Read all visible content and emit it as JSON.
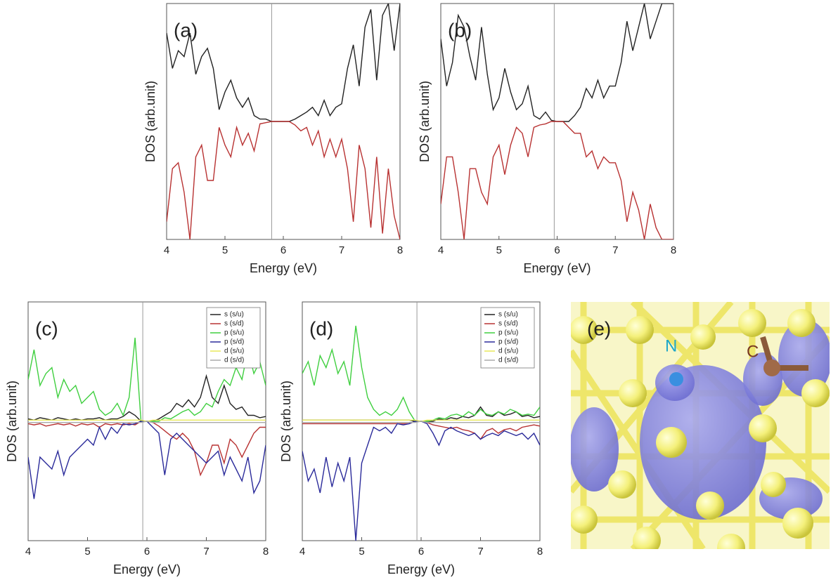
{
  "chart_data": [
    {
      "type": "line",
      "label": "(a)",
      "xlabel": "Energy (eV)",
      "ylabel": "DOS (arb.unit)",
      "xlim": [
        4,
        8
      ],
      "xticks": [
        4,
        5,
        6,
        7,
        8
      ],
      "ylim": [
        -1,
        1
      ],
      "fermi_level": 5.8,
      "x": [
        4,
        4.1,
        4.2,
        4.3,
        4.4,
        4.5,
        4.6,
        4.7,
        4.8,
        4.9,
        5,
        5.1,
        5.2,
        5.3,
        5.4,
        5.5,
        5.6,
        5.7,
        5.8,
        5.9,
        6,
        6.1,
        6.2,
        6.3,
        6.4,
        6.5,
        6.6,
        6.7,
        6.8,
        6.9,
        7,
        7.1,
        7.2,
        7.3,
        7.4,
        7.5,
        7.6,
        7.7,
        7.8,
        7.9,
        8
      ],
      "series": [
        {
          "color": "#222222",
          "values": [
            0.75,
            0.45,
            0.6,
            0.55,
            0.75,
            0.4,
            0.55,
            0.62,
            0.45,
            0.1,
            0.25,
            0.35,
            0.2,
            0.12,
            0.2,
            0.05,
            0.02,
            0.02,
            0,
            0,
            0,
            0,
            0.02,
            0.05,
            0.08,
            0.12,
            0.05,
            0.18,
            0.05,
            0.12,
            0.15,
            0.45,
            0.65,
            0.3,
            0.8,
            0.95,
            0.35,
            0.9,
            1,
            0.6,
            1
          ]
        },
        {
          "color": "#b83232",
          "values": [
            -0.85,
            -0.4,
            -0.35,
            -0.6,
            -1,
            -0.3,
            -0.2,
            -0.5,
            -0.5,
            -0.05,
            -0.2,
            -0.3,
            -0.05,
            -0.2,
            -0.1,
            -0.25,
            -0.02,
            -0.01,
            0,
            0,
            0,
            0,
            -0.03,
            -0.08,
            -0.05,
            -0.2,
            -0.08,
            -0.3,
            -0.15,
            -0.3,
            -0.15,
            -0.4,
            -0.85,
            -0.2,
            -0.4,
            -0.9,
            -0.3,
            -0.95,
            -0.4,
            -0.8,
            -1
          ]
        }
      ]
    },
    {
      "type": "line",
      "label": "(b)",
      "xlabel": "Energy (eV)",
      "ylabel": "DOS (arb.unit)",
      "xlim": [
        4,
        8
      ],
      "xticks": [
        4,
        5,
        6,
        7,
        8
      ],
      "ylim": [
        -1,
        1
      ],
      "fermi_level": 5.95,
      "x": [
        4,
        4.1,
        4.2,
        4.3,
        4.4,
        4.5,
        4.6,
        4.7,
        4.8,
        4.9,
        5,
        5.1,
        5.2,
        5.3,
        5.4,
        5.5,
        5.6,
        5.7,
        5.8,
        5.9,
        6,
        6.1,
        6.2,
        6.3,
        6.4,
        6.5,
        6.6,
        6.7,
        6.8,
        6.9,
        7,
        7.1,
        7.2,
        7.3,
        7.4,
        7.5,
        7.6,
        7.7,
        7.8,
        7.9,
        8
      ],
      "series": [
        {
          "color": "#222222",
          "values": [
            0.7,
            0.3,
            0.5,
            0.9,
            0.8,
            0.55,
            0.35,
            0.8,
            0.4,
            0.1,
            0.2,
            0.45,
            0.25,
            0.1,
            0.15,
            0.3,
            0.05,
            0.02,
            0.08,
            0.01,
            0,
            0,
            0,
            0.05,
            0.12,
            0.28,
            0.2,
            0.35,
            0.2,
            0.3,
            0.3,
            0.5,
            0.85,
            0.6,
            0.8,
            1,
            0.7,
            0.85,
            1,
            1,
            1
          ]
        },
        {
          "color": "#b83232",
          "values": [
            -0.7,
            -0.3,
            -0.3,
            -0.6,
            -1,
            -0.4,
            -0.4,
            -0.6,
            -0.7,
            -0.3,
            -0.2,
            -0.45,
            -0.2,
            -0.05,
            -0.1,
            -0.3,
            -0.05,
            -0.03,
            -0.02,
            0,
            0,
            0,
            -0.05,
            -0.1,
            -0.1,
            -0.3,
            -0.25,
            -0.4,
            -0.3,
            -0.35,
            -0.35,
            -0.5,
            -0.85,
            -0.6,
            -0.75,
            -1,
            -0.7,
            -0.9,
            -1,
            -1,
            -1
          ]
        }
      ]
    },
    {
      "type": "line",
      "label": "(c)",
      "xlabel": "Energy (eV)",
      "ylabel": "DOS (arb.unit)",
      "legend": "upper right",
      "xlim": [
        4,
        8
      ],
      "xticks": [
        4,
        5,
        6,
        7,
        8
      ],
      "ylim": [
        -1,
        1
      ],
      "fermi_level": 5.93,
      "x": [
        4,
        4.1,
        4.2,
        4.3,
        4.4,
        4.5,
        4.6,
        4.7,
        4.8,
        4.9,
        5,
        5.1,
        5.2,
        5.3,
        5.4,
        5.5,
        5.6,
        5.7,
        5.8,
        5.9,
        6,
        6.1,
        6.2,
        6.3,
        6.4,
        6.5,
        6.6,
        6.7,
        6.8,
        6.9,
        7,
        7.1,
        7.2,
        7.3,
        7.4,
        7.5,
        7.6,
        7.7,
        7.8,
        7.9,
        8
      ],
      "series": [
        {
          "name": "s (s/u)",
          "color": "#222222",
          "values": [
            0.02,
            0.01,
            0.03,
            0.02,
            0.01,
            0.03,
            0.02,
            0.01,
            0.02,
            0.01,
            0.02,
            0.02,
            0.03,
            0.01,
            0.02,
            0.02,
            0.04,
            0.08,
            0.05,
            0,
            0,
            0,
            0.02,
            0.05,
            0.08,
            0.15,
            0.12,
            0.18,
            0.12,
            0.2,
            0.38,
            0.2,
            0.15,
            0.3,
            0.15,
            0.1,
            0.12,
            0.05,
            0.05,
            0.03,
            0.04
          ]
        },
        {
          "name": "s (s/d)",
          "color": "#b83232",
          "values": [
            -0.02,
            -0.03,
            -0.02,
            -0.04,
            -0.03,
            -0.02,
            -0.03,
            -0.02,
            -0.04,
            -0.02,
            -0.03,
            -0.02,
            -0.05,
            -0.02,
            -0.03,
            -0.02,
            -0.03,
            -0.02,
            -0.03,
            0,
            0,
            -0.01,
            -0.04,
            -0.08,
            -0.12,
            -0.15,
            -0.1,
            -0.15,
            -0.25,
            -0.45,
            -0.35,
            -0.2,
            -0.2,
            -0.35,
            -0.15,
            -0.2,
            -0.3,
            -0.2,
            -0.1,
            -0.05,
            -0.05
          ]
        },
        {
          "name": "p (s/u)",
          "color": "#3fcf3f",
          "values": [
            0.35,
            0.6,
            0.3,
            0.4,
            0.45,
            0.2,
            0.35,
            0.25,
            0.3,
            0.15,
            0.2,
            0.25,
            0.1,
            0.05,
            0.08,
            0.15,
            0.05,
            0.2,
            0.7,
            0,
            0,
            0,
            0,
            0.03,
            0.02,
            0.05,
            0.08,
            0.1,
            0.05,
            0.08,
            0.15,
            0.12,
            0.25,
            0.35,
            0.3,
            0.45,
            0.35,
            0.6,
            0.4,
            0.5,
            0.3
          ]
        },
        {
          "name": "p (s/d)",
          "color": "#2a2a9a",
          "values": [
            -0.3,
            -0.65,
            -0.3,
            -0.35,
            -0.4,
            -0.25,
            -0.45,
            -0.3,
            -0.25,
            -0.2,
            -0.15,
            -0.2,
            -0.05,
            -0.15,
            -0.05,
            -0.1,
            -0.02,
            -0.03,
            -0.02,
            0,
            0,
            -0.05,
            -0.1,
            -0.45,
            -0.15,
            -0.1,
            -0.15,
            -0.2,
            -0.25,
            -0.3,
            -0.35,
            -0.3,
            -0.25,
            -0.45,
            -0.3,
            -0.4,
            -0.5,
            -0.3,
            -0.6,
            -0.5,
            -0.2
          ]
        },
        {
          "name": "d (s/u)",
          "color": "#e8e85a",
          "values": [
            0.01,
            0.01,
            0.01,
            0.01,
            0.01,
            0.01,
            0.01,
            0.01,
            0.01,
            0.01,
            0.01,
            0.01,
            0.01,
            0.01,
            0.01,
            0.01,
            0.01,
            0.01,
            0.01,
            0.01,
            0,
            0.01,
            0.01,
            0.01,
            0.01,
            0.01,
            0.01,
            0.01,
            0.01,
            0.01,
            0.01,
            0.01,
            0.01,
            0.01,
            0.01,
            0.01,
            0.01,
            0.01,
            0.01,
            0.01,
            0.01
          ]
        },
        {
          "name": "d (s/d)",
          "color": "#aaaaaa",
          "values": [
            -0.01,
            -0.01,
            -0.01,
            -0.01,
            -0.01,
            -0.01,
            -0.01,
            -0.01,
            -0.01,
            -0.01,
            -0.01,
            -0.01,
            -0.01,
            -0.01,
            -0.01,
            -0.01,
            -0.01,
            -0.01,
            -0.01,
            -0.01,
            0,
            -0.01,
            -0.01,
            -0.01,
            -0.01,
            -0.01,
            -0.01,
            -0.01,
            -0.01,
            -0.01,
            -0.01,
            -0.01,
            -0.01,
            -0.01,
            -0.01,
            -0.01,
            -0.01,
            -0.01,
            -0.01,
            -0.01,
            -0.01
          ]
        }
      ]
    },
    {
      "type": "line",
      "label": "(d)",
      "xlabel": "Energy (eV)",
      "ylabel": "DOS (arb.unit)",
      "legend": "upper right",
      "xlim": [
        4,
        8
      ],
      "xticks": [
        4,
        5,
        6,
        7,
        8
      ],
      "ylim": [
        -1,
        1
      ],
      "fermi_level": 5.93,
      "x": [
        4,
        4.1,
        4.2,
        4.3,
        4.4,
        4.5,
        4.6,
        4.7,
        4.8,
        4.9,
        5,
        5.1,
        5.2,
        5.3,
        5.4,
        5.5,
        5.6,
        5.7,
        5.8,
        5.9,
        6,
        6.1,
        6.2,
        6.3,
        6.4,
        6.5,
        6.6,
        6.7,
        6.8,
        6.9,
        7,
        7.1,
        7.2,
        7.3,
        7.4,
        7.5,
        7.6,
        7.7,
        7.8,
        7.9,
        8
      ],
      "series": [
        {
          "name": "s (s/u)",
          "color": "#222222",
          "values": [
            0.01,
            0.01,
            0.01,
            0.01,
            0.01,
            0.01,
            0.01,
            0.01,
            0.01,
            0.01,
            0.01,
            0.01,
            0.01,
            0.01,
            0.01,
            0.01,
            0.01,
            0.01,
            0.01,
            0,
            0,
            0,
            0,
            0.02,
            0.01,
            0.03,
            0.02,
            0.04,
            0.03,
            0.05,
            0.12,
            0.05,
            0.04,
            0.08,
            0.05,
            0.06,
            0.08,
            0.04,
            0.05,
            0.03,
            0.04
          ]
        },
        {
          "name": "s (s/d)",
          "color": "#b83232",
          "values": [
            -0.02,
            -0.02,
            -0.02,
            -0.02,
            -0.02,
            -0.02,
            -0.02,
            -0.02,
            -0.02,
            -0.02,
            -0.02,
            -0.02,
            -0.02,
            -0.02,
            -0.02,
            -0.02,
            -0.02,
            -0.02,
            -0.02,
            0,
            0,
            -0.01,
            -0.03,
            -0.04,
            -0.05,
            -0.06,
            -0.05,
            -0.07,
            -0.08,
            -0.1,
            -0.15,
            -0.08,
            -0.06,
            -0.1,
            -0.07,
            -0.06,
            -0.08,
            -0.05,
            -0.04,
            -0.03,
            -0.04
          ]
        },
        {
          "name": "p (s/u)",
          "color": "#3fcf3f",
          "values": [
            0.4,
            0.5,
            0.3,
            0.55,
            0.45,
            0.6,
            0.4,
            0.5,
            0.3,
            0.8,
            0.45,
            0.2,
            0.1,
            0.05,
            0.08,
            0.05,
            0.1,
            0.2,
            0.08,
            0,
            0,
            0,
            0.01,
            0.03,
            0.02,
            0.05,
            0.06,
            0.04,
            0.08,
            0.05,
            0.1,
            0.06,
            0.05,
            0.08,
            0.06,
            0.1,
            0.08,
            0.05,
            0.06,
            0.05,
            0.12
          ]
        },
        {
          "name": "p (s/d)",
          "color": "#2a2a9a",
          "values": [
            -0.25,
            -0.5,
            -0.4,
            -0.6,
            -0.3,
            -0.55,
            -0.35,
            -0.5,
            -0.3,
            -1,
            -0.35,
            -0.2,
            -0.05,
            -0.08,
            -0.05,
            -0.1,
            -0.02,
            -0.03,
            -0.02,
            0,
            0,
            -0.02,
            -0.1,
            -0.2,
            -0.08,
            -0.05,
            -0.08,
            -0.1,
            -0.12,
            -0.1,
            -0.15,
            -0.12,
            -0.1,
            -0.12,
            -0.08,
            -0.1,
            -0.12,
            -0.1,
            -0.15,
            -0.1,
            -0.2
          ]
        },
        {
          "name": "d (s/u)",
          "color": "#e8e85a",
          "values": [
            0.01,
            0.01,
            0.01,
            0.01,
            0.01,
            0.01,
            0.01,
            0.01,
            0.01,
            0.01,
            0.01,
            0.01,
            0.01,
            0.01,
            0.01,
            0.01,
            0.01,
            0.01,
            0.01,
            0.01,
            0,
            0.01,
            0.01,
            0.01,
            0.01,
            0.01,
            0.01,
            0.01,
            0.01,
            0.01,
            0.01,
            0.01,
            0.01,
            0.01,
            0.01,
            0.01,
            0.01,
            0.01,
            0.01,
            0.01,
            0.01
          ]
        },
        {
          "name": "d (s/d)",
          "color": "#aaaaaa",
          "values": [
            -0.01,
            -0.01,
            -0.01,
            -0.01,
            -0.01,
            -0.01,
            -0.01,
            -0.01,
            -0.01,
            -0.01,
            -0.01,
            -0.01,
            -0.01,
            -0.01,
            -0.01,
            -0.01,
            -0.01,
            -0.01,
            -0.01,
            -0.01,
            0,
            -0.01,
            -0.01,
            -0.01,
            -0.01,
            -0.01,
            -0.01,
            -0.01,
            -0.01,
            -0.01,
            -0.01,
            -0.01,
            -0.01,
            -0.01,
            -0.01,
            -0.01,
            -0.01,
            -0.01,
            -0.01,
            -0.01,
            -0.01
          ]
        }
      ]
    }
  ],
  "image": {
    "label": "(e)",
    "atom_n": "N",
    "atom_c": "C"
  }
}
